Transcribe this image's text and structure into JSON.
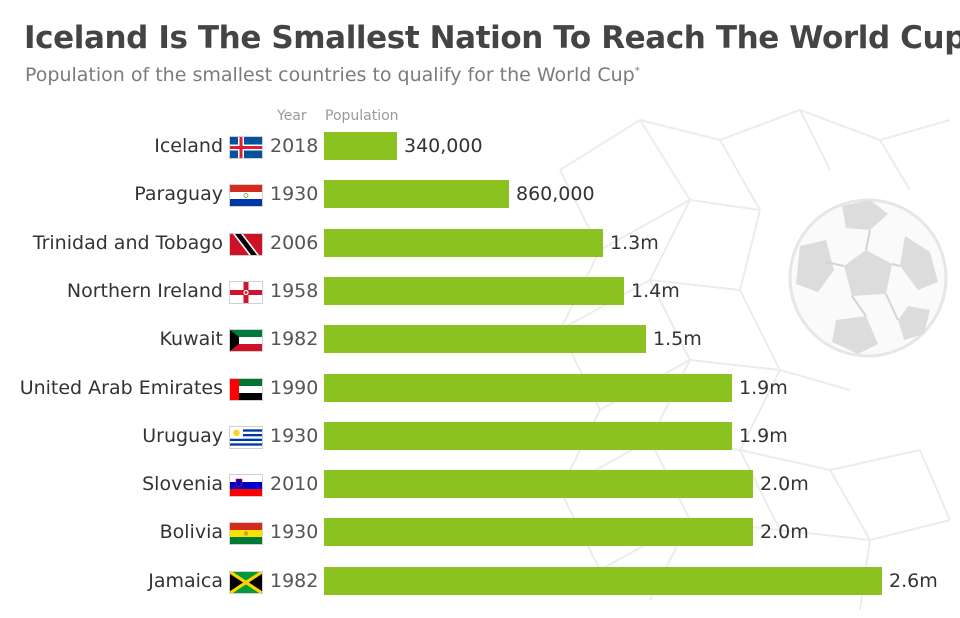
{
  "header": {
    "title": "Iceland Is The Smallest Nation To Reach The World Cup",
    "subtitle": "Population of the smallest countries to qualify for the World Cup",
    "subtitle_mark": "*"
  },
  "columns": {
    "year": "Year",
    "population": "Population"
  },
  "colors": {
    "bar": "#8cc21f",
    "text": "#333333",
    "title": "#444444",
    "subtitle": "#7b7b7b"
  },
  "background_icon": "soccer-ball-in-net-icon",
  "chart_data": {
    "type": "bar",
    "orientation": "horizontal",
    "title": "Iceland Is The Smallest Nation To Reach The World Cup",
    "subtitle": "Population of the smallest countries to qualify for the World Cup",
    "xlabel": "Population",
    "xlim": [
      0,
      2600000
    ],
    "grid": false,
    "legend": "none",
    "rows": [
      {
        "country": "Iceland",
        "flag": "iceland-flag-icon",
        "year": "2018",
        "value": 340000,
        "label": "340,000"
      },
      {
        "country": "Paraguay",
        "flag": "paraguay-flag-icon",
        "year": "1930",
        "value": 860000,
        "label": "860,000"
      },
      {
        "country": "Trinidad and Tobago",
        "flag": "trinidad-and-tobago-flag-icon",
        "year": "2006",
        "value": 1300000,
        "label": "1.3m"
      },
      {
        "country": "Northern Ireland",
        "flag": "northern-ireland-flag-icon",
        "year": "1958",
        "value": 1400000,
        "label": "1.4m"
      },
      {
        "country": "Kuwait",
        "flag": "kuwait-flag-icon",
        "year": "1982",
        "value": 1500000,
        "label": "1.5m"
      },
      {
        "country": "United Arab Emirates",
        "flag": "uae-flag-icon",
        "year": "1990",
        "value": 1900000,
        "label": "1.9m"
      },
      {
        "country": "Uruguay",
        "flag": "uruguay-flag-icon",
        "year": "1930",
        "value": 1900000,
        "label": "1.9m"
      },
      {
        "country": "Slovenia",
        "flag": "slovenia-flag-icon",
        "year": "2010",
        "value": 2000000,
        "label": "2.0m"
      },
      {
        "country": "Bolivia",
        "flag": "bolivia-flag-icon",
        "year": "1930",
        "value": 2000000,
        "label": "2.0m"
      },
      {
        "country": "Jamaica",
        "flag": "jamaica-flag-icon",
        "year": "1982",
        "value": 2600000,
        "label": "2.6m"
      }
    ]
  }
}
